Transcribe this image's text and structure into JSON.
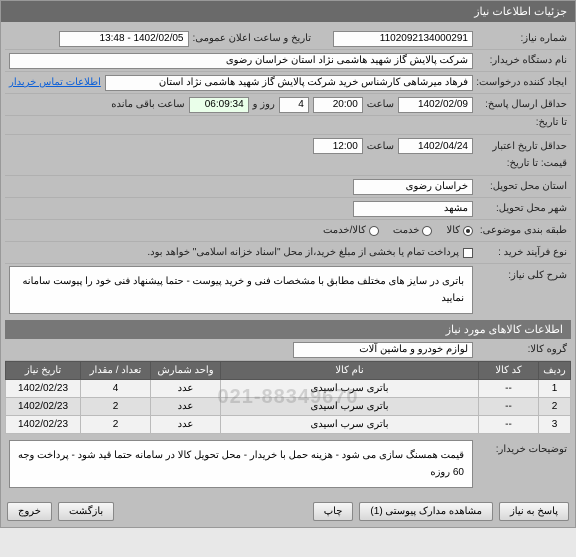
{
  "panel": {
    "title": "جزئیات اطلاعات نیاز"
  },
  "fields": {
    "need_no_label": "شماره نیاز:",
    "need_no": "1102092134000291",
    "publish_label": "تاریخ و ساعت اعلان عمومی:",
    "publish_value": "1402/02/05 - 13:48",
    "buyer_org_label": "نام دستگاه خریدار:",
    "buyer_org": "شرکت پالایش گاز شهید هاشمی نژاد   استان خراسان رضوی",
    "requester_label": "ایجاد کننده درخواست:",
    "requester_value": "فرهاد میرشاهی کارشناس خرید شرکت پالایش گاز شهید هاشمی نژاد   استان",
    "contact_link": "اطلاعات تماس خریدار",
    "deadline1_label": "حداقل ارسال پاسخ:",
    "deadline1_sep": "تا تاریخ:",
    "deadline1_date": "1402/02/09",
    "time_label": "ساعت",
    "deadline1_time": "20:00",
    "days_val": "4",
    "days_label": "روز و",
    "remain_time": "06:09:34",
    "remain_label": "ساعت باقی مانده",
    "deadline2_label": "حداقل تاریخ اعتبار",
    "deadline2_sub": "قیمت: تا تاریخ:",
    "deadline2_date": "1402/04/24",
    "deadline2_time": "12:00",
    "province_label": "استان محل تحویل:",
    "province_value": "خراسان رضوی",
    "city_label": "شهر محل تحویل:",
    "city_value": "مشهد",
    "category_label": "طبقه بندی موضوعی:",
    "cat_goods": "کالا",
    "cat_service": "خدمت",
    "cat_both": "کالا/خدمت",
    "buy_process_label": "نوع فرآیند خرید :",
    "buy_process_text": "پرداخت تمام یا بخشی از مبلغ خرید،از محل \"اسناد خزانه اسلامی\" خواهد بود.",
    "need_desc_label": "شرح کلی نیاز:",
    "need_desc_text": "باتری در سایز های مختلف مطابق با مشخصات فنی و خرید پیوست - حتما پیشنهاد فنی خود را پیوست سامانه نمایید",
    "items_section": "اطلاعات کالاهای مورد نیاز",
    "group_label": "گروه کالا:",
    "group_value": "لوازم خودرو و ماشین آلات",
    "buyer_note_label": "توضیحات خریدار:",
    "buyer_note_text": "قیمت همسنگ سازی می شود - هزینه حمل با خریدار - محل تحویل کالا در سامانه حتما قید شود - پرداخت وجه 60 روزه"
  },
  "table": {
    "headers": {
      "row": "ردیف",
      "code": "کد کالا",
      "name": "نام کالا",
      "unit": "واحد شمارش",
      "qty": "تعداد / مقدار",
      "date": "تاریخ نیاز"
    },
    "rows": [
      {
        "idx": "1",
        "code": "--",
        "name": "باتری سرب اسیدی",
        "unit": "عدد",
        "qty": "4",
        "date": "1402/02/23"
      },
      {
        "idx": "2",
        "code": "--",
        "name": "باتری سرب اسیدی",
        "unit": "عدد",
        "qty": "2",
        "date": "1402/02/23"
      },
      {
        "idx": "3",
        "code": "--",
        "name": "باتری سرب اسیدی",
        "unit": "عدد",
        "qty": "2",
        "date": "1402/02/23"
      }
    ]
  },
  "watermark": "021-88349670",
  "buttons": {
    "reply": "پاسخ به نیاز",
    "attach": "مشاهده مدارک پیوستی (1)",
    "print": "چاپ",
    "back": "بازگشت",
    "close": "خروج"
  }
}
